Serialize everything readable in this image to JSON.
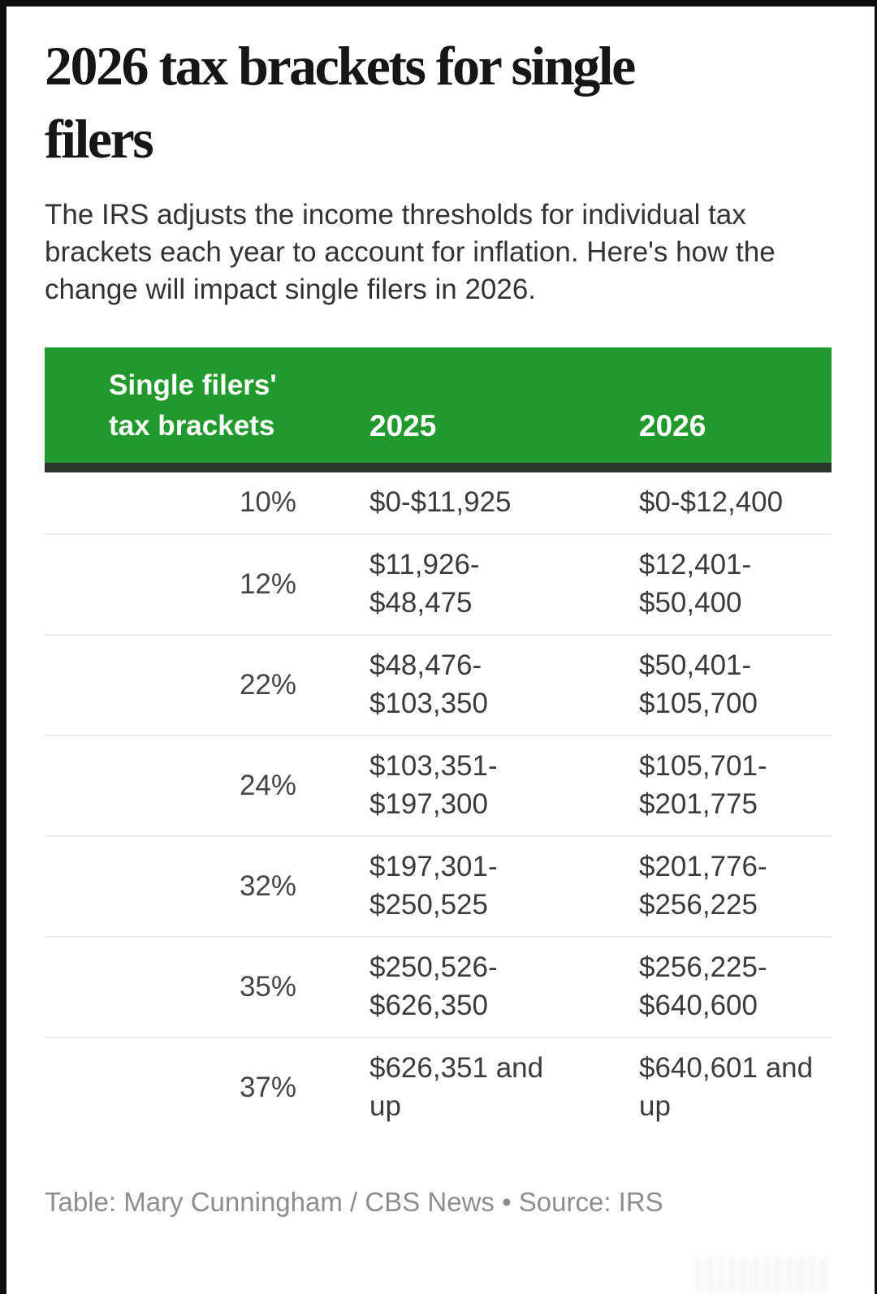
{
  "page": {
    "title_lines": [
      "2026 tax brackets for single",
      "filers"
    ],
    "intro": "The IRS adjusts the income thresholds for individual tax brackets each year to account for inflation. Here's how the change will impact single filers in 2026.",
    "credit": "Table: Mary Cunningham / CBS News • Source: IRS"
  },
  "table": {
    "header": {
      "col1_lines": [
        "Single filers'",
        "tax brackets"
      ],
      "col2": "2025",
      "col3": "2026"
    },
    "rows": [
      {
        "rate": "10%",
        "y2025": [
          "$0-$11,925"
        ],
        "y2026": [
          "$0-$12,400"
        ]
      },
      {
        "rate": "12%",
        "y2025": [
          "$11,926-",
          "$48,475"
        ],
        "y2026": [
          "$12,401-",
          "$50,400"
        ]
      },
      {
        "rate": "22%",
        "y2025": [
          "$48,476-",
          "$103,350"
        ],
        "y2026": [
          "$50,401-",
          "$105,700"
        ]
      },
      {
        "rate": "24%",
        "y2025": [
          "$103,351-",
          "$197,300"
        ],
        "y2026": [
          "$105,701-",
          "$201,775"
        ]
      },
      {
        "rate": "32%",
        "y2025": [
          "$197,301-",
          "$250,525"
        ],
        "y2026": [
          "$201,776-",
          "$256,225"
        ]
      },
      {
        "rate": "35%",
        "y2025": [
          "$250,526-",
          "$626,350"
        ],
        "y2026": [
          "$256,225-",
          "$640,600"
        ]
      },
      {
        "rate": "37%",
        "y2025": [
          "$626,351 and",
          "up"
        ],
        "y2026": [
          "$640,601 and",
          "up"
        ]
      }
    ]
  },
  "colors": {
    "header_green": "#21992c",
    "header_underline": "#2c322c",
    "row_divider": "#eaeaea",
    "title_text": "#161616",
    "body_text": "#3b3b3b",
    "credit_gray": "#8d8d8d",
    "frame_border": "#0e0e0e"
  },
  "chart_data": {
    "type": "table",
    "title": "2026 tax brackets for single filers",
    "subtitle": "The IRS adjusts the income thresholds for individual tax brackets each year to account for inflation. Here's how the change will impact single filers in 2026.",
    "columns": [
      "Single filers' tax brackets",
      "2025",
      "2026"
    ],
    "rows": [
      [
        "10%",
        "$0-$11,925",
        "$0-$12,400"
      ],
      [
        "12%",
        "$11,926-$48,475",
        "$12,401-$50,400"
      ],
      [
        "22%",
        "$48,476-$103,350",
        "$50,401-$105,700"
      ],
      [
        "24%",
        "$103,351-$197,300",
        "$105,701-$201,775"
      ],
      [
        "32%",
        "$197,301-$250,525",
        "$201,776-$256,225"
      ],
      [
        "35%",
        "$250,526-$626,350",
        "$256,225-$640,600"
      ],
      [
        "37%",
        "$626,351 and up",
        "$640,601 and up"
      ]
    ],
    "credit": "Table: Mary Cunningham / CBS News",
    "source": "IRS"
  }
}
